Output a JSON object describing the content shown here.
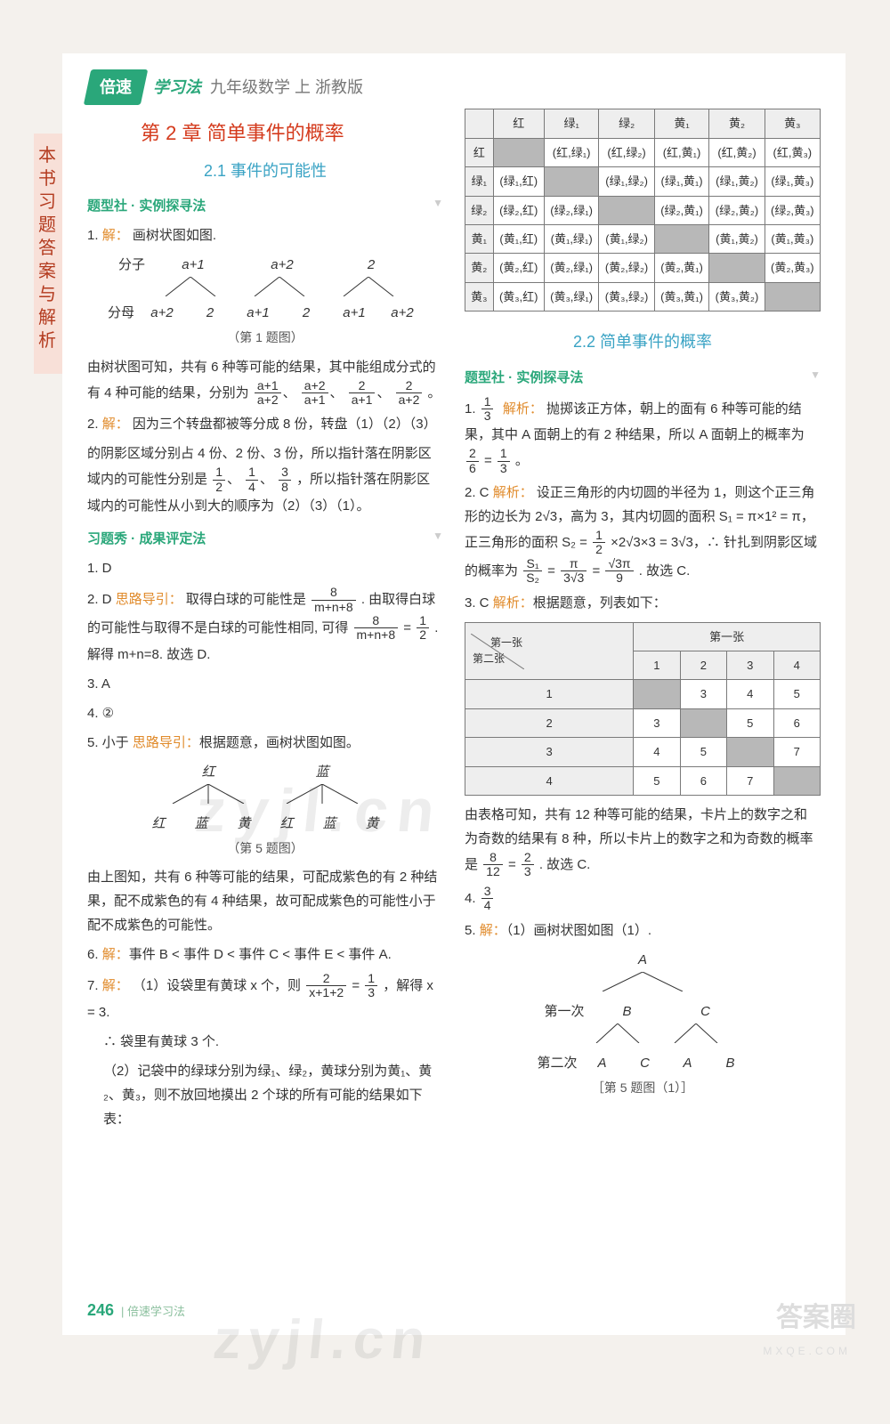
{
  "brand": {
    "badge": "倍速",
    "suffix": "学习法",
    "grade": "九年级数学  上  浙教版"
  },
  "sidebar": "本书习题答案与解析",
  "chapter": "第 2 章  简单事件的概率",
  "sec21": {
    "title": "2.1  事件的可能性"
  },
  "tixingshe": "题型社 · 实例探寻法",
  "q1": {
    "prefix": "1.",
    "kw": "解：",
    "txt": "画树状图如图.",
    "row1_lbl": "分子",
    "r1": [
      "a+1",
      "a+2",
      "2"
    ],
    "row2_lbl": "分母",
    "r2": [
      "a+2",
      "2",
      "a+1",
      "2",
      "a+1",
      "a+2"
    ],
    "caption": "（第 1 题图）",
    "after": "由树状图可知，共有 6 种等可能的结果，其中能组成分式的有 4 种可能的结果，分别为",
    "frs": [
      [
        "a+1",
        "a+2"
      ],
      [
        "a+2",
        "a+1"
      ],
      [
        "2",
        "a+1"
      ],
      [
        "2",
        "a+2"
      ]
    ],
    "tail": "。"
  },
  "q2": {
    "prefix": "2.",
    "kw": "解：",
    "l1": "因为三个转盘都被等分成 8 份，转盘（1）（2）（3）",
    "l2": "的阴影区域分别占 4 份、2 份、3 份，所以指针落在阴影区域内的可能性分别是",
    "fr": [
      [
        "1",
        "2"
      ],
      [
        "1",
        "4"
      ],
      [
        "3",
        "8"
      ]
    ],
    "l3": "，所以指针落在阴影区域内的可能性从小到大的顺序为（2）（3）（1）。"
  },
  "xitixiu": "习题秀 · 成果评定法",
  "e1": "1. D",
  "e2": {
    "p": "2. D  ",
    "kw": "思路导引：",
    "a": "取得白球的可能性是",
    "fr1": [
      "8",
      "m+n+8"
    ],
    "b": ". 由取得白球的可能性与取得不是白球的可能性相同, 可得",
    "fr2": [
      "8",
      "m+n+8"
    ],
    "eq": "=",
    "fr3": [
      "1",
      "2"
    ],
    "c": ". 解得 m+n=8. 故选 D."
  },
  "e3": "3. A",
  "e4": "4. ②",
  "e5": {
    "p": "5. 小于  ",
    "kw": "思路导引：",
    "a": "根据题意，画树状图如图。",
    "top": [
      "红",
      "蓝"
    ],
    "bot": [
      "红",
      "蓝",
      "黄",
      "红",
      "蓝",
      "黄"
    ],
    "caption": "（第 5 题图）",
    "after": "由上图知，共有 6 种等可能的结果，可配成紫色的有 2 种结果，配不成紫色的有 4 种结果，故可配成紫色的可能性小于配不成紫色的可能性。"
  },
  "e6": {
    "p": "6.",
    "kw": "解：",
    "t": "事件 B < 事件 D < 事件 C < 事件 E < 事件 A."
  },
  "e7": {
    "p": "7.",
    "kw": "解：",
    "a": "（1）设袋里有黄球 x 个，则",
    "fr1": [
      "2",
      "x+1+2"
    ],
    "eq": "=",
    "fr2": [
      "1",
      "3"
    ],
    "b": "，解得 x = 3.",
    "c": "∴ 袋里有黄球 3 个.",
    "d": "（2）记袋中的绿球分别为绿₁、绿₂，黄球分别为黄₁、黄₂、黄₃，则不放回地摸出 2 个球的所有可能的结果如下表："
  },
  "colorTable": {
    "headers": [
      "",
      "红",
      "绿₁",
      "绿₂",
      "黄₁",
      "黄₂",
      "黄₃"
    ],
    "rows": [
      {
        "h": "红",
        "cells": [
          "",
          "(红,绿₁)",
          "(红,绿₂)",
          "(红,黄₁)",
          "(红,黄₂)",
          "(红,黄₃)"
        ],
        "shade": [
          0
        ]
      },
      {
        "h": "绿₁",
        "cells": [
          "(绿₁,红)",
          "",
          "(绿₁,绿₂)",
          "(绿₁,黄₁)",
          "(绿₁,黄₂)",
          "(绿₁,黄₃)"
        ],
        "shade": [
          1
        ]
      },
      {
        "h": "绿₂",
        "cells": [
          "(绿₂,红)",
          "(绿₂,绿₁)",
          "",
          "(绿₂,黄₁)",
          "(绿₂,黄₂)",
          "(绿₂,黄₃)"
        ],
        "shade": [
          2
        ]
      },
      {
        "h": "黄₁",
        "cells": [
          "(黄₁,红)",
          "(黄₁,绿₁)",
          "(黄₁,绿₂)",
          "",
          "(黄₁,黄₂)",
          "(黄₁,黄₃)"
        ],
        "shade": [
          3
        ]
      },
      {
        "h": "黄₂",
        "cells": [
          "(黄₂,红)",
          "(黄₂,绿₁)",
          "(黄₂,绿₂)",
          "(黄₂,黄₁)",
          "",
          "(黄₂,黄₃)"
        ],
        "shade": [
          4
        ]
      },
      {
        "h": "黄₃",
        "cells": [
          "(黄₃,红)",
          "(黄₃,绿₁)",
          "(黄₃,绿₂)",
          "(黄₃,黄₁)",
          "(黄₃,黄₂)",
          ""
        ],
        "shade": [
          5
        ]
      }
    ]
  },
  "sec22": {
    "title": "2.2  简单事件的概率"
  },
  "r_tixing": "题型社 · 实例探寻法",
  "r1": {
    "p": "1.",
    "fr": [
      "1",
      "3"
    ],
    "kw": "解析：",
    "t": "抛掷该正方体，朝上的面有 6 种等可能的结果，其中 A 面朝上的有 2 种结果，所以 A 面朝上的概率为",
    "fr2": [
      "2",
      "6"
    ],
    "eq": "=",
    "fr3": [
      "1",
      "3"
    ],
    "tail": "。"
  },
  "r2": {
    "p": "2. C  ",
    "kw": "解析：",
    "a": "设正三角形的内切圆的半径为 1，则这个正三角形的边长为 2√3，高为 3，其内切圆的面积 S₁ = π×1² = π，正三角形的面积 S₂ = ",
    "frA": [
      "1",
      "2"
    ],
    "b": "×2√3×3 = 3√3，∴ 针扎到阴影区域的概率为",
    "frB": [
      "S₁",
      "S₂"
    ],
    "eq1": "=",
    "frC": [
      "π",
      "3√3"
    ],
    "eq2": "=",
    "frD": [
      "√3π",
      "9"
    ],
    "c": ". 故选 C."
  },
  "r3": {
    "p": "3. C  ",
    "kw": "解析：",
    "t": "根据题意，列表如下："
  },
  "sumTable": {
    "corner_top": "第一张",
    "corner_left": "第二张",
    "cols": [
      "1",
      "2",
      "3",
      "4"
    ],
    "rows": [
      {
        "h": "1",
        "c": [
          "",
          "3",
          "4",
          "5"
        ],
        "shade": [
          0
        ]
      },
      {
        "h": "2",
        "c": [
          "3",
          "",
          "5",
          "6"
        ],
        "shade": [
          1
        ]
      },
      {
        "h": "3",
        "c": [
          "4",
          "5",
          "",
          "7"
        ],
        "shade": [
          2
        ]
      },
      {
        "h": "4",
        "c": [
          "5",
          "6",
          "7",
          ""
        ],
        "shade": [
          3
        ]
      }
    ]
  },
  "r3after": {
    "a": "由表格可知，共有 12 种等可能的结果，卡片上的数字之和为奇数的结果有 8 种，所以卡片上的数字之和为奇数的概率是",
    "fr1": [
      "8",
      "12"
    ],
    "eq": "=",
    "fr2": [
      "2",
      "3"
    ],
    "b": ". 故选 C."
  },
  "r4": {
    "p": "4.",
    "fr": [
      "3",
      "4"
    ]
  },
  "r5": {
    "p": "5.",
    "kw": "解：",
    "a": "（1）画树状图如图（1）.",
    "top": "A",
    "row1_lbl": "第一次",
    "r1": [
      "B",
      "C"
    ],
    "row2_lbl": "第二次",
    "r2": [
      "A",
      "C",
      "A",
      "B"
    ],
    "caption": "［第 5 题图（1）］"
  },
  "footer": {
    "page": "246",
    "txt": "| 倍速学习法"
  },
  "wm": "zyjl.cn",
  "stamp": "答案圈",
  "stamp_sub": "MXQE.COM",
  "colors": {
    "brand": "#2aa77a",
    "sectionBlue": "#3aa3c4",
    "chapterRed": "#d43a1c",
    "kwOrange": "#e08a2a",
    "sideBg": "#f8e0d8",
    "sideFg": "#b33a1e",
    "shade": "#b8b8b8",
    "border": "#7a7a7a",
    "background": "#f4f1ed"
  }
}
